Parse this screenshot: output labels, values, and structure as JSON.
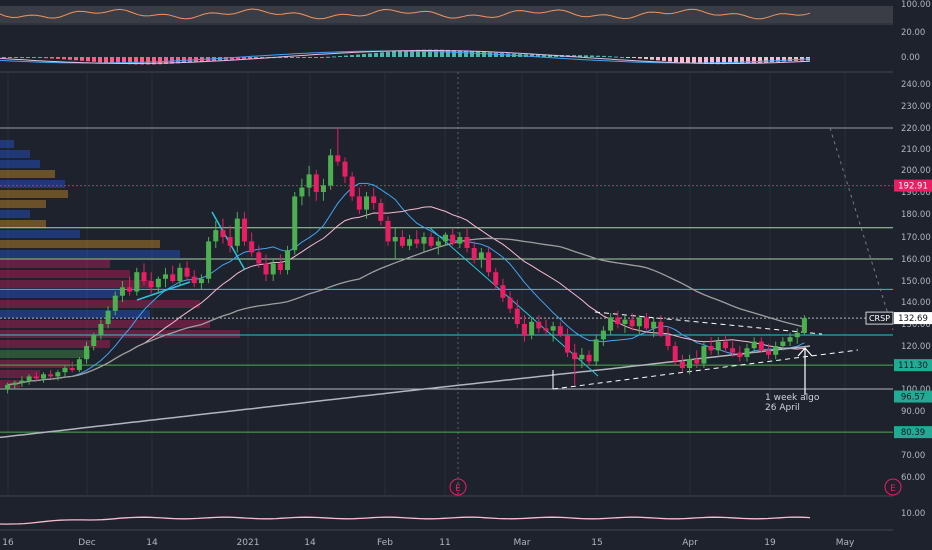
{
  "chart_data": {
    "type": "candlestick",
    "symbol": "CRSP",
    "last_price": "132.69",
    "price_axis_labels": [
      "240.00",
      "230.00",
      "220.00",
      "210.00",
      "200.00",
      "190.00",
      "180.00",
      "170.00",
      "160.00",
      "150.00",
      "140.00",
      "130.00",
      "120.00",
      "110.00",
      "100.00",
      "90.00",
      "80.00",
      "70.00",
      "60.00"
    ],
    "price_badges": [
      {
        "label": "192.91",
        "value": 192.91,
        "color": "#e91e63",
        "text_color": "#ffffff"
      },
      {
        "label": "132.69",
        "value": 132.69,
        "color": "#ffffff",
        "text_color": "#131722",
        "prefix": "CRSP"
      },
      {
        "label": "111.30",
        "value": 111.3,
        "color": "#22ab94",
        "text_color": "#131722"
      },
      {
        "label": "96.57",
        "value": 96.57,
        "color": "#22ab94",
        "text_color": "#131722"
      },
      {
        "label": "80.39",
        "value": 80.39,
        "color": "#22ab94",
        "text_color": "#131722"
      }
    ],
    "horizontal_levels": [
      {
        "value": 220,
        "color": "#9598a1"
      },
      {
        "value": 192.91,
        "color": "#e91e63",
        "style": "dotted"
      },
      {
        "value": 174,
        "color": "#a5d6a7"
      },
      {
        "value": 160,
        "color": "#a5d6a7"
      },
      {
        "value": 146,
        "color": "#26c6da"
      },
      {
        "value": 132.69,
        "color": "#b2b5be",
        "style": "dotted"
      },
      {
        "value": 125,
        "color": "#26c6da"
      },
      {
        "value": 111.3,
        "color": "#4caf50"
      },
      {
        "value": 100,
        "color": "#b2b5be"
      },
      {
        "value": 80.39,
        "color": "#4caf50"
      }
    ],
    "x_axis_labels": [
      "16",
      "Dec",
      "14",
      "2021",
      "14",
      "Feb",
      "11",
      "Mar",
      "15",
      "Apr",
      "19",
      "May"
    ],
    "candles": [
      {
        "o": 100,
        "h": 103,
        "l": 98,
        "c": 102
      },
      {
        "o": 102,
        "h": 104,
        "l": 100,
        "c": 103
      },
      {
        "o": 103,
        "h": 106,
        "l": 101,
        "c": 104
      },
      {
        "o": 104,
        "h": 107,
        "l": 102,
        "c": 106
      },
      {
        "o": 106,
        "h": 108,
        "l": 104,
        "c": 105
      },
      {
        "o": 105,
        "h": 108,
        "l": 103,
        "c": 107
      },
      {
        "o": 107,
        "h": 109,
        "l": 105,
        "c": 106
      },
      {
        "o": 106,
        "h": 109,
        "l": 104,
        "c": 108
      },
      {
        "o": 108,
        "h": 111,
        "l": 106,
        "c": 110
      },
      {
        "o": 110,
        "h": 113,
        "l": 108,
        "c": 109
      },
      {
        "o": 109,
        "h": 115,
        "l": 108,
        "c": 114
      },
      {
        "o": 114,
        "h": 122,
        "l": 112,
        "c": 120
      },
      {
        "o": 120,
        "h": 126,
        "l": 118,
        "c": 125
      },
      {
        "o": 125,
        "h": 132,
        "l": 123,
        "c": 130
      },
      {
        "o": 130,
        "h": 138,
        "l": 128,
        "c": 136
      },
      {
        "o": 136,
        "h": 145,
        "l": 134,
        "c": 143
      },
      {
        "o": 143,
        "h": 150,
        "l": 140,
        "c": 147
      },
      {
        "o": 147,
        "h": 152,
        "l": 143,
        "c": 145
      },
      {
        "o": 145,
        "h": 156,
        "l": 143,
        "c": 154
      },
      {
        "o": 154,
        "h": 158,
        "l": 148,
        "c": 150
      },
      {
        "o": 150,
        "h": 154,
        "l": 144,
        "c": 147
      },
      {
        "o": 147,
        "h": 152,
        "l": 144,
        "c": 151
      },
      {
        "o": 151,
        "h": 156,
        "l": 147,
        "c": 153
      },
      {
        "o": 153,
        "h": 157,
        "l": 149,
        "c": 150
      },
      {
        "o": 150,
        "h": 158,
        "l": 148,
        "c": 156
      },
      {
        "o": 156,
        "h": 159,
        "l": 150,
        "c": 152
      },
      {
        "o": 152,
        "h": 155,
        "l": 147,
        "c": 149
      },
      {
        "o": 149,
        "h": 153,
        "l": 146,
        "c": 151
      },
      {
        "o": 151,
        "h": 170,
        "l": 149,
        "c": 168
      },
      {
        "o": 168,
        "h": 177,
        "l": 165,
        "c": 173
      },
      {
        "o": 173,
        "h": 178,
        "l": 167,
        "c": 170
      },
      {
        "o": 170,
        "h": 175,
        "l": 163,
        "c": 166
      },
      {
        "o": 166,
        "h": 181,
        "l": 163,
        "c": 178
      },
      {
        "o": 178,
        "h": 181,
        "l": 166,
        "c": 168
      },
      {
        "o": 168,
        "h": 172,
        "l": 161,
        "c": 163
      },
      {
        "o": 163,
        "h": 166,
        "l": 156,
        "c": 158
      },
      {
        "o": 158,
        "h": 162,
        "l": 150,
        "c": 153
      },
      {
        "o": 153,
        "h": 160,
        "l": 150,
        "c": 158
      },
      {
        "o": 158,
        "h": 162,
        "l": 153,
        "c": 155
      },
      {
        "o": 155,
        "h": 166,
        "l": 153,
        "c": 164
      },
      {
        "o": 164,
        "h": 190,
        "l": 162,
        "c": 188
      },
      {
        "o": 188,
        "h": 196,
        "l": 184,
        "c": 192
      },
      {
        "o": 192,
        "h": 202,
        "l": 188,
        "c": 198
      },
      {
        "o": 198,
        "h": 200,
        "l": 186,
        "c": 190
      },
      {
        "o": 190,
        "h": 196,
        "l": 186,
        "c": 193
      },
      {
        "o": 193,
        "h": 210,
        "l": 191,
        "c": 207
      },
      {
        "o": 207,
        "h": 220,
        "l": 202,
        "c": 204
      },
      {
        "o": 204,
        "h": 206,
        "l": 194,
        "c": 197
      },
      {
        "o": 197,
        "h": 199,
        "l": 186,
        "c": 188
      },
      {
        "o": 188,
        "h": 192,
        "l": 180,
        "c": 182
      },
      {
        "o": 182,
        "h": 190,
        "l": 178,
        "c": 188
      },
      {
        "o": 188,
        "h": 192,
        "l": 182,
        "c": 185
      },
      {
        "o": 185,
        "h": 187,
        "l": 175,
        "c": 177
      },
      {
        "o": 177,
        "h": 179,
        "l": 166,
        "c": 168
      },
      {
        "o": 168,
        "h": 174,
        "l": 160,
        "c": 170
      },
      {
        "o": 170,
        "h": 173,
        "l": 165,
        "c": 166
      },
      {
        "o": 166,
        "h": 171,
        "l": 164,
        "c": 169
      },
      {
        "o": 169,
        "h": 173,
        "l": 165,
        "c": 167
      },
      {
        "o": 167,
        "h": 172,
        "l": 163,
        "c": 170
      },
      {
        "o": 170,
        "h": 172,
        "l": 165,
        "c": 166
      },
      {
        "o": 166,
        "h": 170,
        "l": 162,
        "c": 168
      },
      {
        "o": 168,
        "h": 172,
        "l": 166,
        "c": 171
      },
      {
        "o": 171,
        "h": 174,
        "l": 166,
        "c": 167
      },
      {
        "o": 167,
        "h": 172,
        "l": 165,
        "c": 170
      },
      {
        "o": 170,
        "h": 174,
        "l": 163,
        "c": 165
      },
      {
        "o": 165,
        "h": 168,
        "l": 158,
        "c": 160
      },
      {
        "o": 160,
        "h": 165,
        "l": 156,
        "c": 163
      },
      {
        "o": 163,
        "h": 165,
        "l": 152,
        "c": 154
      },
      {
        "o": 154,
        "h": 156,
        "l": 146,
        "c": 148
      },
      {
        "o": 148,
        "h": 151,
        "l": 140,
        "c": 142
      },
      {
        "o": 142,
        "h": 145,
        "l": 135,
        "c": 137
      },
      {
        "o": 137,
        "h": 141,
        "l": 128,
        "c": 130
      },
      {
        "o": 130,
        "h": 134,
        "l": 122,
        "c": 125
      },
      {
        "o": 125,
        "h": 133,
        "l": 123,
        "c": 131
      },
      {
        "o": 131,
        "h": 134,
        "l": 126,
        "c": 128
      },
      {
        "o": 128,
        "h": 132,
        "l": 125,
        "c": 127
      },
      {
        "o": 127,
        "h": 131,
        "l": 122,
        "c": 129
      },
      {
        "o": 129,
        "h": 131,
        "l": 124,
        "c": 125
      },
      {
        "o": 125,
        "h": 128,
        "l": 115,
        "c": 117
      },
      {
        "o": 117,
        "h": 121,
        "l": 102,
        "c": 114
      },
      {
        "o": 114,
        "h": 119,
        "l": 110,
        "c": 116
      },
      {
        "o": 116,
        "h": 118,
        "l": 111,
        "c": 113
      },
      {
        "o": 113,
        "h": 125,
        "l": 111,
        "c": 123
      },
      {
        "o": 123,
        "h": 129,
        "l": 120,
        "c": 127
      },
      {
        "o": 127,
        "h": 135,
        "l": 125,
        "c": 133
      },
      {
        "o": 133,
        "h": 136,
        "l": 128,
        "c": 130
      },
      {
        "o": 130,
        "h": 134,
        "l": 126,
        "c": 132
      },
      {
        "o": 132,
        "h": 135,
        "l": 127,
        "c": 129
      },
      {
        "o": 129,
        "h": 134,
        "l": 125,
        "c": 133
      },
      {
        "o": 133,
        "h": 135,
        "l": 127,
        "c": 128
      },
      {
        "o": 128,
        "h": 133,
        "l": 124,
        "c": 131
      },
      {
        "o": 131,
        "h": 134,
        "l": 124,
        "c": 125
      },
      {
        "o": 125,
        "h": 129,
        "l": 118,
        "c": 120
      },
      {
        "o": 120,
        "h": 122,
        "l": 111,
        "c": 113
      },
      {
        "o": 113,
        "h": 116,
        "l": 108,
        "c": 110
      },
      {
        "o": 110,
        "h": 116,
        "l": 107,
        "c": 114
      },
      {
        "o": 114,
        "h": 118,
        "l": 110,
        "c": 112
      },
      {
        "o": 112,
        "h": 122,
        "l": 110,
        "c": 120
      },
      {
        "o": 120,
        "h": 124,
        "l": 116,
        "c": 118
      },
      {
        "o": 118,
        "h": 124,
        "l": 116,
        "c": 122
      },
      {
        "o": 122,
        "h": 125,
        "l": 117,
        "c": 119
      },
      {
        "o": 119,
        "h": 122,
        "l": 115,
        "c": 117
      },
      {
        "o": 117,
        "h": 120,
        "l": 113,
        "c": 115
      },
      {
        "o": 115,
        "h": 121,
        "l": 113,
        "c": 119
      },
      {
        "o": 119,
        "h": 124,
        "l": 117,
        "c": 122
      },
      {
        "o": 122,
        "h": 124,
        "l": 117,
        "c": 118
      },
      {
        "o": 118,
        "h": 121,
        "l": 114,
        "c": 116
      },
      {
        "o": 116,
        "h": 122,
        "l": 114,
        "c": 120
      },
      {
        "o": 120,
        "h": 124,
        "l": 118,
        "c": 122
      },
      {
        "o": 122,
        "h": 126,
        "l": 120,
        "c": 124
      },
      {
        "o": 124,
        "h": 128,
        "l": 121,
        "c": 126
      },
      {
        "o": 126,
        "h": 134,
        "l": 125,
        "c": 132.69
      }
    ],
    "annotation": {
      "lines": [
        "1 week algo",
        "26 April"
      ]
    },
    "earnings_markers": [
      "E",
      "E"
    ],
    "indicator_axis_labels": {
      "rsi": [
        "100.00",
        "20.00"
      ],
      "macd": [
        "0.00"
      ],
      "volume": [
        "10.00"
      ]
    }
  }
}
